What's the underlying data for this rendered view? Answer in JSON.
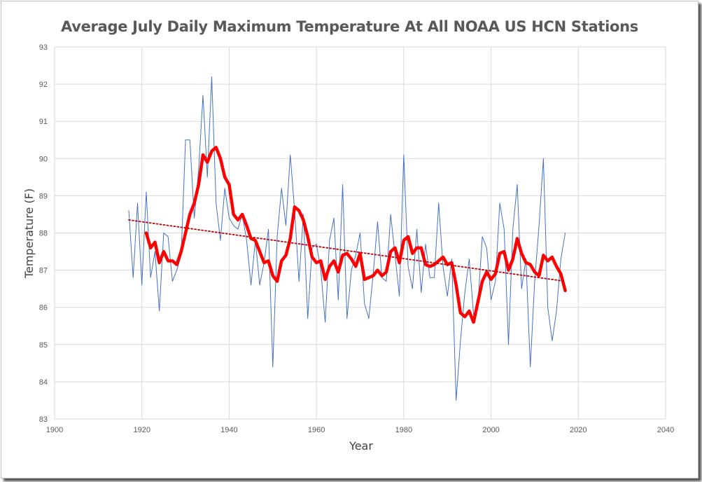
{
  "chart_data": {
    "type": "line",
    "title": "Average July Daily Maximum Temperature At All NOAA US HCN Stations",
    "xlabel": "Year",
    "ylabel": "Temperature (F)",
    "xlim": [
      1900,
      2040
    ],
    "ylim": [
      83,
      93
    ],
    "xticks": [
      "1900",
      "1920",
      "1940",
      "1960",
      "1980",
      "2000",
      "2020",
      "2040"
    ],
    "yticks": [
      "83",
      "84",
      "85",
      "86",
      "87",
      "88",
      "89",
      "90",
      "91",
      "92",
      "93"
    ],
    "grid": true,
    "legend": "none",
    "colors": {
      "annual": "#4472c4",
      "smoothed": "#ff0000",
      "trend": "#c00000",
      "grid": "#d9d9d9"
    },
    "series": [
      {
        "style": "thin-line",
        "x": [
          1917,
          1918,
          1919,
          1920,
          1921,
          1922,
          1923,
          1924,
          1925,
          1926,
          1927,
          1928,
          1929,
          1930,
          1931,
          1932,
          1933,
          1934,
          1935,
          1936,
          1937,
          1938,
          1939,
          1940,
          1941,
          1942,
          1943,
          1944,
          1945,
          1946,
          1947,
          1948,
          1949,
          1950,
          1951,
          1952,
          1953,
          1954,
          1955,
          1956,
          1957,
          1958,
          1959,
          1960,
          1961,
          1962,
          1963,
          1964,
          1965,
          1966,
          1967,
          1968,
          1969,
          1970,
          1971,
          1972,
          1973,
          1974,
          1975,
          1976,
          1977,
          1978,
          1979,
          1980,
          1981,
          1982,
          1983,
          1984,
          1985,
          1986,
          1987,
          1988,
          1989,
          1990,
          1991,
          1992,
          1993,
          1994,
          1995,
          1996,
          1997,
          1998,
          1999,
          2000,
          2001,
          2002,
          2003,
          2004,
          2005,
          2006,
          2007,
          2008,
          2009,
          2010,
          2011,
          2012,
          2013,
          2014,
          2015,
          2016,
          2017
        ],
        "y": [
          88.6,
          86.8,
          88.8,
          86.6,
          89.1,
          86.8,
          87.5,
          85.9,
          88.0,
          87.9,
          86.7,
          87.0,
          87.4,
          90.5,
          90.5,
          88.4,
          89.7,
          91.7,
          89.5,
          92.2,
          88.8,
          87.8,
          89.2,
          88.4,
          88.2,
          88.1,
          88.5,
          87.8,
          86.6,
          87.8,
          86.6,
          87.2,
          88.1,
          84.4,
          87.9,
          89.2,
          88.2,
          90.1,
          88.6,
          86.7,
          88.5,
          85.7,
          87.6,
          87.7,
          87.0,
          85.6,
          87.8,
          88.4,
          86.2,
          89.3,
          85.7,
          87.0,
          87.4,
          88.0,
          86.1,
          85.7,
          86.9,
          88.3,
          86.8,
          86.7,
          88.5,
          87.4,
          86.3,
          90.1,
          87.1,
          86.5,
          88.1,
          86.4,
          87.7,
          86.8,
          86.8,
          88.8,
          87.1,
          86.3,
          87.3,
          83.5,
          85.1,
          86.4,
          87.3,
          85.8,
          86.1,
          87.9,
          87.6,
          86.2,
          86.7,
          88.8,
          88.1,
          85.0,
          88.1,
          89.3,
          86.5,
          87.3,
          84.4,
          86.7,
          88.2,
          90.0,
          86.0,
          85.1,
          85.9,
          87.3,
          88.0
        ]
      },
      {
        "style": "thick-line",
        "x": [
          1921,
          1922,
          1923,
          1924,
          1925,
          1926,
          1927,
          1928,
          1929,
          1930,
          1931,
          1932,
          1933,
          1934,
          1935,
          1936,
          1937,
          1938,
          1939,
          1940,
          1941,
          1942,
          1943,
          1944,
          1945,
          1946,
          1947,
          1948,
          1949,
          1950,
          1951,
          1952,
          1953,
          1954,
          1955,
          1956,
          1957,
          1958,
          1959,
          1960,
          1961,
          1962,
          1963,
          1964,
          1965,
          1966,
          1967,
          1968,
          1969,
          1970,
          1971,
          1972,
          1973,
          1974,
          1975,
          1976,
          1977,
          1978,
          1979,
          1980,
          1981,
          1982,
          1983,
          1984,
          1985,
          1986,
          1987,
          1988,
          1989,
          1990,
          1991,
          1992,
          1993,
          1994,
          1995,
          1996,
          1997,
          1998,
          1999,
          2000,
          2001,
          2002,
          2003,
          2004,
          2005,
          2006,
          2007,
          2008,
          2009,
          2010,
          2011,
          2012,
          2013,
          2014,
          2015,
          2016,
          2017
        ],
        "y": [
          88.0,
          87.6,
          87.75,
          87.2,
          87.5,
          87.25,
          87.25,
          87.15,
          87.5,
          88.0,
          88.5,
          88.8,
          89.3,
          90.1,
          89.9,
          90.2,
          90.3,
          90.0,
          89.5,
          89.3,
          88.5,
          88.35,
          88.5,
          88.2,
          87.85,
          87.8,
          87.5,
          87.2,
          87.25,
          86.85,
          86.7,
          87.25,
          87.4,
          87.85,
          88.7,
          88.6,
          88.35,
          87.9,
          87.35,
          87.2,
          87.25,
          86.75,
          87.1,
          87.25,
          86.95,
          87.4,
          87.45,
          87.3,
          87.1,
          87.45,
          86.75,
          86.8,
          86.85,
          87.0,
          86.85,
          86.95,
          87.5,
          87.6,
          87.2,
          87.8,
          87.9,
          87.45,
          87.6,
          87.6,
          87.15,
          87.1,
          87.15,
          87.25,
          87.35,
          87.15,
          87.2,
          86.6,
          85.85,
          85.75,
          85.9,
          85.6,
          86.15,
          86.7,
          86.95,
          86.75,
          86.9,
          87.45,
          87.5,
          87.0,
          87.3,
          87.85,
          87.45,
          87.2,
          87.15,
          86.95,
          86.85,
          87.4,
          87.25,
          87.35,
          87.1,
          86.9,
          86.45
        ]
      },
      {
        "style": "dotted-trend",
        "x": [
          1917,
          2017
        ],
        "y": [
          88.35,
          86.7
        ]
      }
    ]
  }
}
